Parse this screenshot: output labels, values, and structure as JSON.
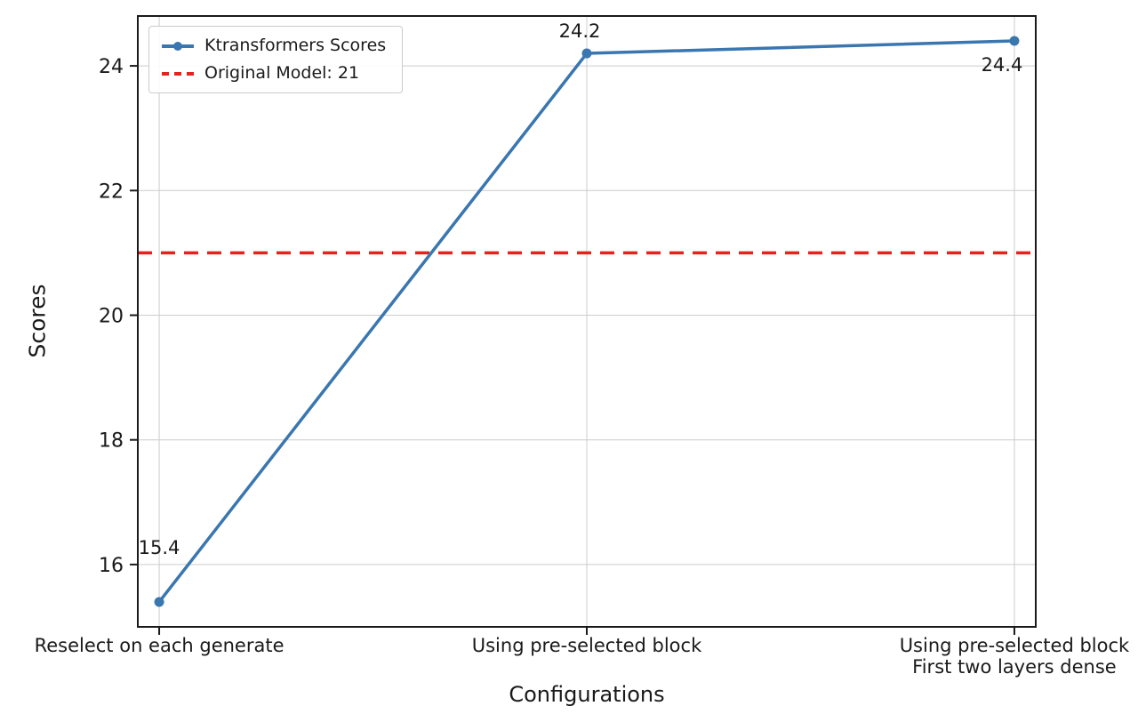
{
  "chart_data": {
    "type": "line",
    "title": "",
    "xlabel": "Configurations",
    "ylabel": "Scores",
    "categories": [
      "Reselect on each generate",
      "Using pre-selected block",
      "Using pre-selected block\nFirst two layers dense"
    ],
    "series": [
      {
        "name": "Ktransformers Scores",
        "values": [
          15.4,
          24.2,
          24.4
        ],
        "color": "#3a76af",
        "marker": "circle",
        "style": "solid"
      }
    ],
    "reference_line": {
      "label": "Original Model: 21",
      "value": 21,
      "color": "#e8211d",
      "style": "dashed"
    },
    "data_labels": [
      "15.4",
      "24.2",
      "24.4"
    ],
    "yticks": [
      16,
      18,
      20,
      22,
      24
    ],
    "ylim": [
      15.0,
      24.8
    ],
    "grid": true,
    "legend_position": "top-left"
  },
  "colors": {
    "series": "#3a76af",
    "reference": "#e8211d",
    "grid": "#cccccc",
    "axis": "#1a1a1a",
    "text": "#1a1a1a",
    "background": "#ffffff"
  }
}
